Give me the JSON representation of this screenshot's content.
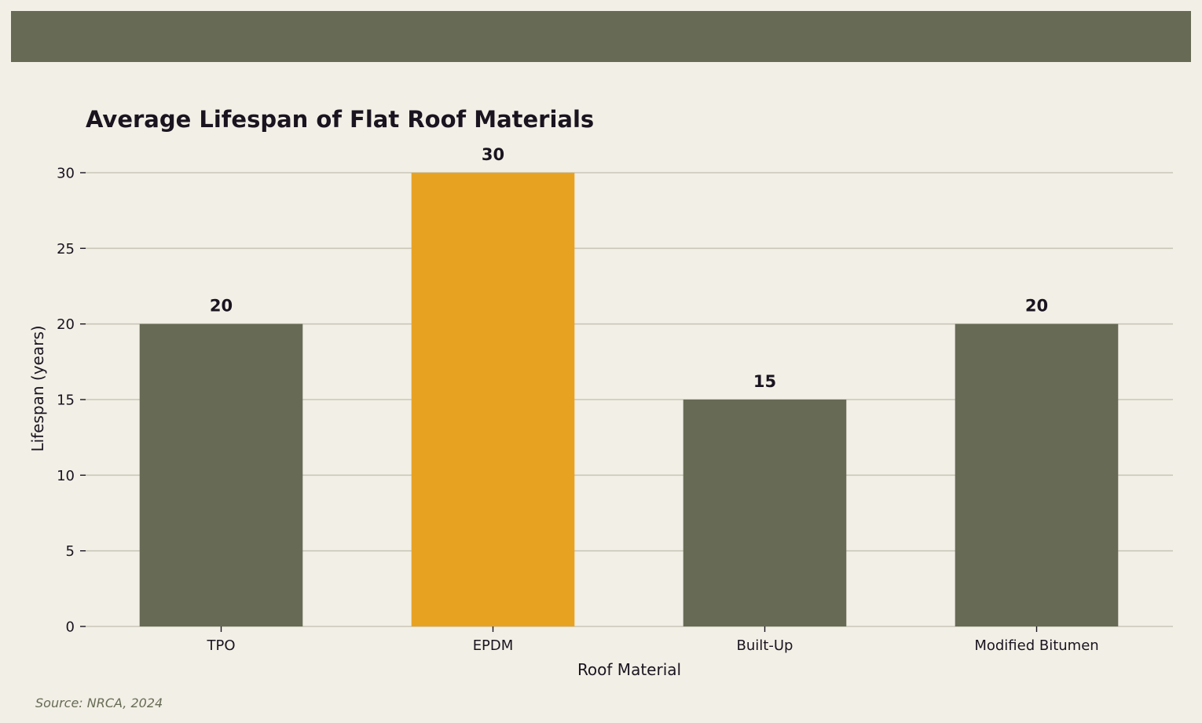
{
  "colors": {
    "background": "#f2efe6",
    "header_band": "#676b55",
    "bar_default": "#676b55",
    "bar_highlight": "#e8a222",
    "grid": "#c9c7b8",
    "text": "#1a1420",
    "source_text": "#676b55"
  },
  "source": "Source: NRCA, 2024",
  "chart_data": {
    "type": "bar",
    "title": "Average Lifespan of Flat Roof Materials",
    "xlabel": "Roof Material",
    "ylabel": "Lifespan (years)",
    "categories": [
      "TPO",
      "EPDM",
      "Built-Up",
      "Modified Bitumen"
    ],
    "values": [
      20,
      30,
      15,
      20
    ],
    "highlight_category": "EPDM",
    "ylim": [
      0,
      30
    ],
    "yticks": [
      0,
      5,
      10,
      15,
      20,
      25,
      30
    ],
    "grid": "horizontal",
    "data_labels": true
  }
}
